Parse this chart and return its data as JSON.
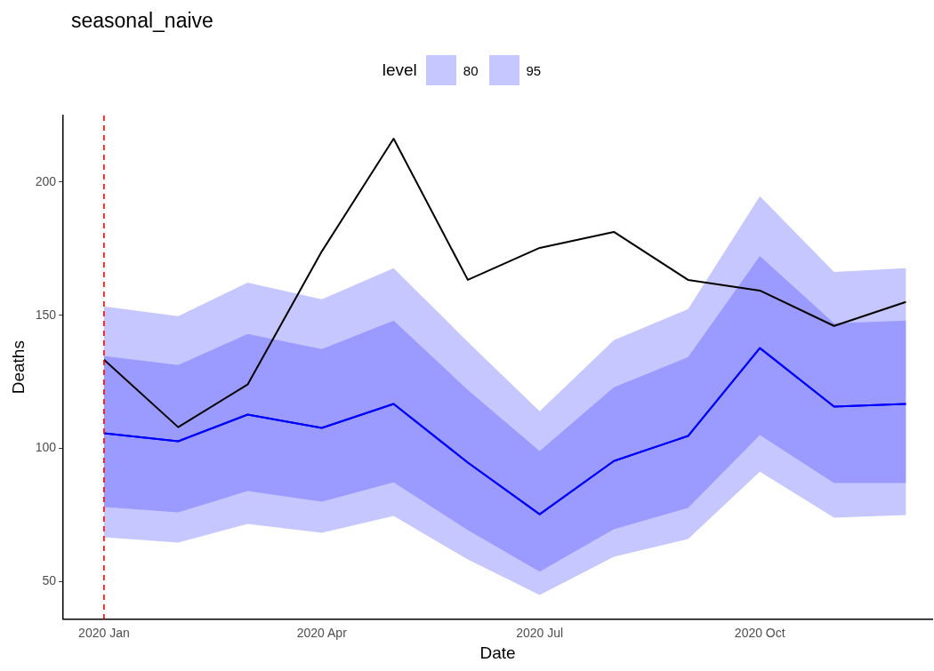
{
  "chart_data": {
    "type": "line",
    "title": "seasonal_naive",
    "xlabel": "Date",
    "ylabel": "Deaths",
    "legend_title": "level",
    "legend": "top",
    "x": [
      "2020-01",
      "2020-02",
      "2020-03",
      "2020-04",
      "2020-05",
      "2020-06",
      "2020-07",
      "2020-08",
      "2020-09",
      "2020-10",
      "2020-11",
      "2020-12"
    ],
    "xlim": [
      "2019-12-15",
      "2020-12-12"
    ],
    "xticks": [
      {
        "value": "2020-01",
        "label": "2020 Jan"
      },
      {
        "value": "2020-04",
        "label": "2020 Apr"
      },
      {
        "value": "2020-07",
        "label": "2020 Jul"
      },
      {
        "value": "2020-10",
        "label": "2020 Oct"
      }
    ],
    "ylim": [
      36,
      225
    ],
    "yticks": [
      50,
      100,
      150,
      200
    ],
    "grid": false,
    "marker": "none",
    "series": [
      {
        "name": "80",
        "color": "#0000ff",
        "values": [
          105.7,
          102.7,
          112.7,
          107.7,
          116.7,
          94.7,
          75.3,
          95.3,
          104.7,
          137.7,
          115.7,
          116.7
        ],
        "lower": [
          78,
          76,
          84,
          80,
          87.3,
          69.3,
          53.7,
          69.7,
          77.7,
          105,
          87,
          87
        ],
        "upper": [
          134.7,
          131.3,
          143,
          137.3,
          148,
          122,
          99,
          123,
          134.3,
          172.3,
          147,
          148
        ]
      },
      {
        "name": "95",
        "color": "#0000ff",
        "values": [
          105.7,
          102.7,
          112.7,
          107.7,
          116.7,
          94.7,
          75.3,
          95.3,
          104.7,
          137.7,
          115.7,
          116.7
        ],
        "lower": [
          66.7,
          64.7,
          71.7,
          68.3,
          74.7,
          58.3,
          45,
          59.3,
          66,
          91.3,
          74,
          75
        ],
        "upper": [
          153.3,
          149.7,
          162.3,
          156,
          167.7,
          140,
          114,
          140.7,
          152.3,
          194.7,
          166.3,
          167.7
        ]
      },
      {
        "color": "#000000",
        "values": [
          133.3,
          108,
          124,
          174,
          216.3,
          163.3,
          175.3,
          181.3,
          163.3,
          159.3,
          146,
          155
        ]
      }
    ],
    "ref_lines": [
      {
        "axis": "x",
        "value": "2020-01",
        "color": "#ff0000",
        "line_style": "dashed"
      }
    ]
  }
}
